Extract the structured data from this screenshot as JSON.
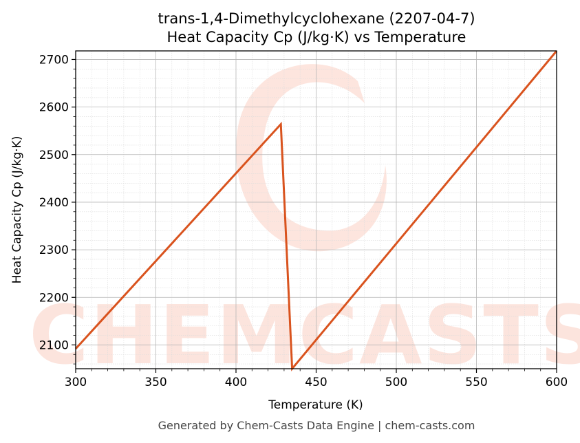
{
  "chart_data": {
    "type": "line",
    "title": "trans-1,4-Dimethylcyclohexane (2207-04-7)",
    "subtitle": "Heat Capacity Cp (J/kg·K) vs Temperature",
    "xlabel": "Temperature (K)",
    "ylabel": "Heat Capacity Cp (J/kg·K)",
    "xlim": [
      300,
      600
    ],
    "ylim": [
      2050,
      2718
    ],
    "xticks": [
      300,
      350,
      400,
      450,
      500,
      550,
      600
    ],
    "yticks": [
      2100,
      2200,
      2300,
      2400,
      2500,
      2600,
      2700
    ],
    "grid": true,
    "series": [
      {
        "color": "#d9531e",
        "x": [
          300,
          428,
          435,
          600
        ],
        "y": [
          2092,
          2564,
          2050,
          2718
        ]
      }
    ]
  },
  "watermark": "CHEMCASTS",
  "footer": "Generated by Chem-Casts Data Engine | chem-casts.com"
}
